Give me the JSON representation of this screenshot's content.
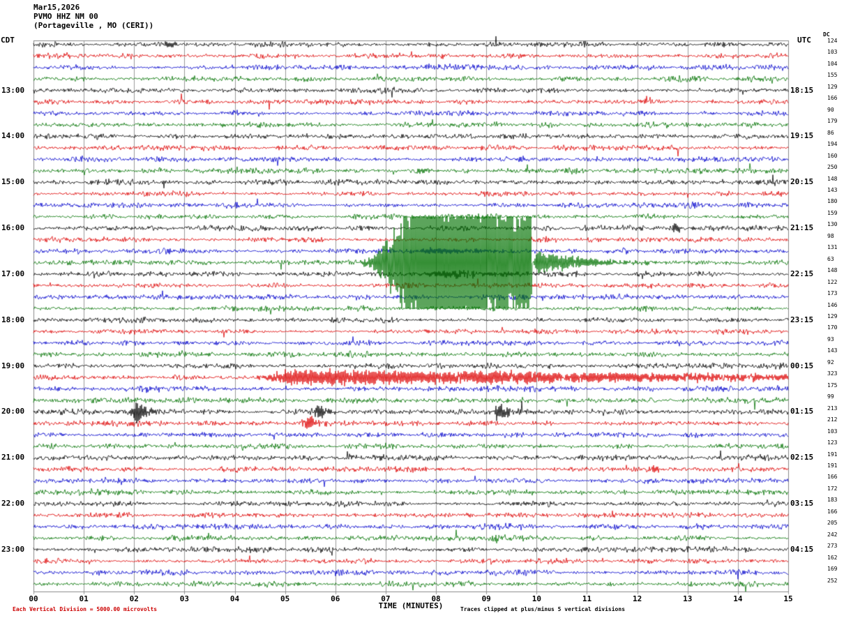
{
  "header": {
    "date": "Mar15,2026",
    "station": "PVMO HHZ NM 00",
    "location": "(Portageville , MO (CERI))",
    "left_tz": "CDT",
    "right_tz": "UTC",
    "dc_label": "DC"
  },
  "footer": {
    "left_note": "Each Vertical Division = 5000.00 microvolts",
    "right_note": "Traces clipped at plus/minus 5 vertical divisions"
  },
  "chart_data": {
    "type": "line",
    "title": "PVMO HHZ NM 00 (Portageville , MO (CERI)) helicorder Mar15,2026",
    "x_axis": {
      "label": "TIME (MINUTES)",
      "range_minutes": [
        0,
        15
      ],
      "ticks": [
        "00",
        "01",
        "02",
        "03",
        "04",
        "05",
        "06",
        "07",
        "08",
        "09",
        "10",
        "11",
        "12",
        "13",
        "14",
        "15"
      ]
    },
    "row_duration_minutes": 15,
    "vertical_division_microvolts": 5000.0,
    "clip_divisions": 5,
    "colors": {
      "black": "#000000",
      "red": "#dd0000",
      "blue": "#0000cc",
      "green": "#007200"
    },
    "color_cycle": [
      "black",
      "red",
      "blue",
      "green"
    ],
    "rows": [
      {
        "cdt_start": "12:00",
        "dc": 124
      },
      {
        "cdt_start": "12:15",
        "dc": 103
      },
      {
        "cdt_start": "12:30",
        "dc": 104
      },
      {
        "cdt_start": "12:45",
        "dc": 155
      },
      {
        "cdt_start": "13:00",
        "dc": 129,
        "left_label": "13:00",
        "right_label": "18:15"
      },
      {
        "cdt_start": "13:15",
        "dc": 166
      },
      {
        "cdt_start": "13:30",
        "dc": 90
      },
      {
        "cdt_start": "13:45",
        "dc": 179
      },
      {
        "cdt_start": "14:00",
        "dc": 86,
        "left_label": "14:00",
        "right_label": "19:15"
      },
      {
        "cdt_start": "14:15",
        "dc": 194
      },
      {
        "cdt_start": "14:30",
        "dc": 160
      },
      {
        "cdt_start": "14:45",
        "dc": 250
      },
      {
        "cdt_start": "15:00",
        "dc": 148,
        "left_label": "15:00",
        "right_label": "20:15"
      },
      {
        "cdt_start": "15:15",
        "dc": 143
      },
      {
        "cdt_start": "15:30",
        "dc": 180
      },
      {
        "cdt_start": "15:45",
        "dc": 159
      },
      {
        "cdt_start": "16:00",
        "dc": 130,
        "left_label": "16:00",
        "right_label": "21:15"
      },
      {
        "cdt_start": "16:15",
        "dc": 98
      },
      {
        "cdt_start": "16:30",
        "dc": 131
      },
      {
        "cdt_start": "16:45",
        "dc": 63
      },
      {
        "cdt_start": "17:00",
        "dc": 148,
        "left_label": "17:00",
        "right_label": "22:15"
      },
      {
        "cdt_start": "17:15",
        "dc": 122
      },
      {
        "cdt_start": "17:30",
        "dc": 173
      },
      {
        "cdt_start": "17:45",
        "dc": 146
      },
      {
        "cdt_start": "18:00",
        "dc": 129,
        "left_label": "18:00",
        "right_label": "23:15"
      },
      {
        "cdt_start": "18:15",
        "dc": 170
      },
      {
        "cdt_start": "18:30",
        "dc": 93
      },
      {
        "cdt_start": "18:45",
        "dc": 143
      },
      {
        "cdt_start": "19:00",
        "dc": 92,
        "left_label": "19:00",
        "right_label": "00:15"
      },
      {
        "cdt_start": "19:15",
        "dc": 323
      },
      {
        "cdt_start": "19:30",
        "dc": 175
      },
      {
        "cdt_start": "19:45",
        "dc": 99
      },
      {
        "cdt_start": "20:00",
        "dc": 213,
        "left_label": "20:00",
        "right_label": "01:15"
      },
      {
        "cdt_start": "20:15",
        "dc": 212
      },
      {
        "cdt_start": "20:30",
        "dc": 103
      },
      {
        "cdt_start": "20:45",
        "dc": 123
      },
      {
        "cdt_start": "21:00",
        "dc": 191,
        "left_label": "21:00",
        "right_label": "02:15"
      },
      {
        "cdt_start": "21:15",
        "dc": 191
      },
      {
        "cdt_start": "21:30",
        "dc": 166
      },
      {
        "cdt_start": "21:45",
        "dc": 172
      },
      {
        "cdt_start": "22:00",
        "dc": 183,
        "left_label": "22:00",
        "right_label": "03:15"
      },
      {
        "cdt_start": "22:15",
        "dc": 166
      },
      {
        "cdt_start": "22:30",
        "dc": 205
      },
      {
        "cdt_start": "22:45",
        "dc": 242
      },
      {
        "cdt_start": "23:00",
        "dc": 273,
        "left_label": "23:00",
        "right_label": "04:15"
      },
      {
        "cdt_start": "23:15",
        "dc": 162
      },
      {
        "cdt_start": "23:30",
        "dc": 169
      },
      {
        "cdt_start": "23:45",
        "dc": 252
      }
    ],
    "events": [
      {
        "row": 0,
        "start": 2.55,
        "peak": 2.65,
        "end": 2.9,
        "amp": 7
      },
      {
        "row": 16,
        "start": 12.6,
        "peak": 12.75,
        "end": 13.0,
        "amp": 9
      },
      {
        "row": 18,
        "start": 6.9,
        "peak": 7.9,
        "end": 9.6,
        "amp": 4,
        "tau": 1.5
      },
      {
        "row": 19,
        "start": 6.4,
        "peak": 7.7,
        "end": 9.9,
        "amp": 150,
        "clip": 66,
        "tau": 4
      },
      {
        "row": 19,
        "start": 9.9,
        "peak": 10.0,
        "end": 12.4,
        "amp": 18,
        "clip": 66,
        "tau": 0.9
      },
      {
        "row": 20,
        "start": 7.2,
        "peak": 8.0,
        "end": 11.0,
        "amp": 4,
        "tau": 2.5
      },
      {
        "row": 29,
        "start": 4.3,
        "peak": 5.0,
        "end": 10.5,
        "amp": 11,
        "tau": 12
      },
      {
        "row": 29,
        "start": 10.5,
        "peak": 10.6,
        "end": 15.0,
        "amp": 7,
        "tau": 6
      },
      {
        "row": 30,
        "start": 2.2,
        "peak": 2.3,
        "end": 2.55,
        "amp": 5
      },
      {
        "row": 32,
        "start": 1.85,
        "peak": 2.05,
        "end": 2.5,
        "amp": 19
      },
      {
        "row": 32,
        "start": 5.5,
        "peak": 5.65,
        "end": 6.0,
        "amp": 13
      },
      {
        "row": 32,
        "start": 9.05,
        "peak": 9.25,
        "end": 9.65,
        "amp": 15
      },
      {
        "row": 33,
        "start": 5.15,
        "peak": 5.5,
        "end": 6.0,
        "amp": 9
      },
      {
        "row": 37,
        "start": 12.15,
        "peak": 12.3,
        "end": 12.65,
        "amp": 6
      }
    ]
  }
}
